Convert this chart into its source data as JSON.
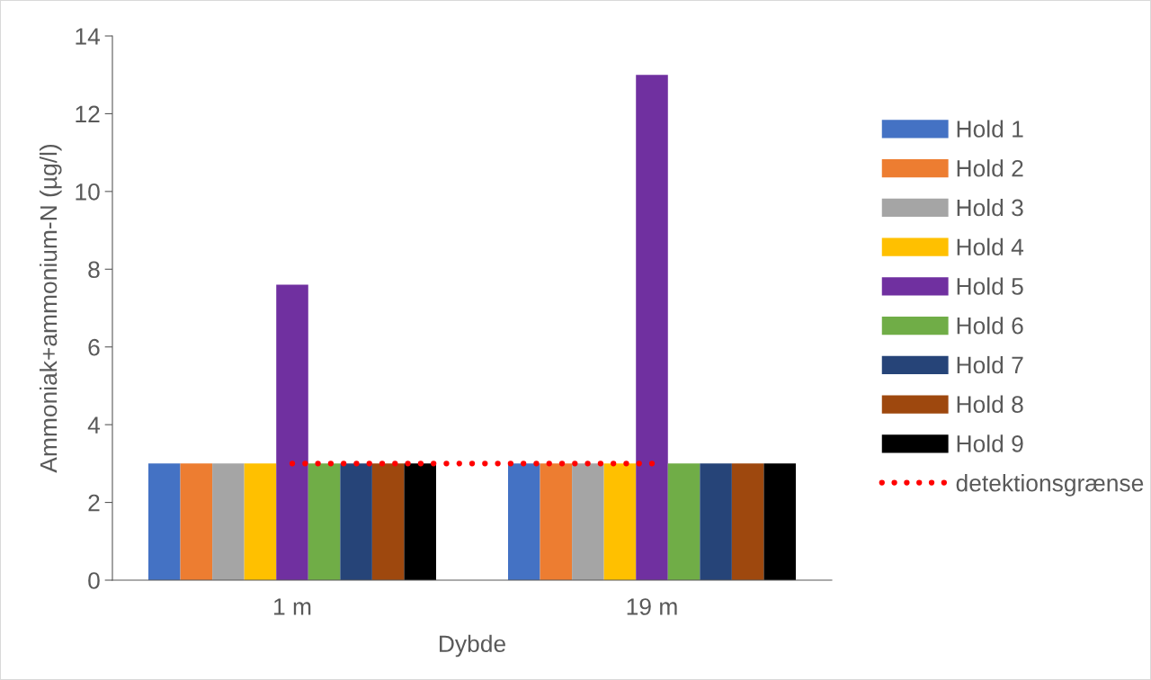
{
  "chart_data": {
    "type": "bar",
    "xlabel": "Dybde",
    "ylabel": "Ammoniak+ammonium-N (µg/l)",
    "categories": [
      "1 m",
      "19 m"
    ],
    "series": [
      {
        "name": "Hold 1",
        "color": "#4472c4",
        "values": [
          3,
          3
        ]
      },
      {
        "name": "Hold 2",
        "color": "#ed7d31",
        "values": [
          3,
          3
        ]
      },
      {
        "name": "Hold 3",
        "color": "#a5a5a5",
        "values": [
          3,
          3
        ]
      },
      {
        "name": "Hold 4",
        "color": "#ffc000",
        "values": [
          3,
          3
        ]
      },
      {
        "name": "Hold 5",
        "color": "#7030a0",
        "values": [
          7.6,
          13
        ]
      },
      {
        "name": "Hold 6",
        "color": "#70ad47",
        "values": [
          3,
          3
        ]
      },
      {
        "name": "Hold 7",
        "color": "#264478",
        "values": [
          3,
          3
        ]
      },
      {
        "name": "Hold 8",
        "color": "#9e480e",
        "values": [
          3,
          3
        ]
      },
      {
        "name": "Hold 9",
        "color": "#000000",
        "values": [
          3,
          3
        ]
      },
      {
        "name": "detektionsgrænse",
        "type": "line",
        "color": "#ff0000",
        "line_style": "dotted",
        "marker": "none",
        "values": [
          3,
          3
        ]
      }
    ],
    "ylim": [
      0,
      14
    ],
    "yticks": [
      0,
      2,
      4,
      6,
      8,
      10,
      12,
      14
    ],
    "grid": false,
    "legend": "right"
  }
}
